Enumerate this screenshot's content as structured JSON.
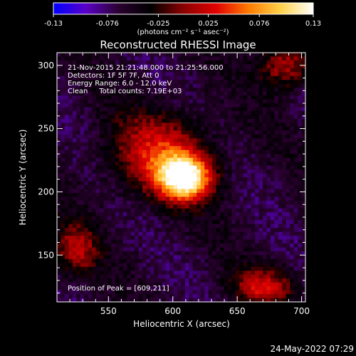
{
  "chart_data": {
    "type": "heatmap",
    "title": "Reconstructed RHESSI Image",
    "xlabel": "Heliocentric X (arcsec)",
    "ylabel": "Heliocentric Y (arcsec)",
    "xlim": [
      510,
      703
    ],
    "ylim": [
      113,
      310
    ],
    "x_ticks": [
      550,
      600,
      650,
      700
    ],
    "y_ticks": [
      150,
      200,
      250,
      300
    ],
    "colorbar": {
      "min": -0.13,
      "max": 0.13,
      "ticks": [
        "-0.13",
        "-0.076",
        "-0.025",
        "0.025",
        "0.076",
        "0.13"
      ],
      "units_label": "(photons cm⁻² s⁻¹ asec⁻²)",
      "colormap": [
        "#0000ff",
        "#5a00c8",
        "#2a0030",
        "#000000",
        "#8b0000",
        "#e00000",
        "#ff7a00",
        "#ffd24a",
        "#ffffff"
      ]
    },
    "annotations": [
      "21-Nov-2015 21:21:48.000 to 21:25:56.000",
      "Detectors: 1F 5F 7F, Att 0",
      "Energy Range: 6.0 - 12.0 keV",
      "Clean     Total counts: 7.19E+03"
    ],
    "peak_label": "Position of Peak = [609,211]",
    "peak": [
      609,
      211
    ],
    "sources": [
      {
        "x": 609,
        "y": 211,
        "sx": 14,
        "sy": 12,
        "amp": 0.13
      },
      {
        "x": 590,
        "y": 230,
        "sx": 26,
        "sy": 22,
        "amp": 0.06
      },
      {
        "x": 688,
        "y": 300,
        "sx": 14,
        "sy": 12,
        "amp": 0.05
      },
      {
        "x": 525,
        "y": 155,
        "sx": 12,
        "sy": 14,
        "amp": 0.04
      },
      {
        "x": 670,
        "y": 125,
        "sx": 16,
        "sy": 10,
        "amp": 0.05
      }
    ],
    "background": -0.06
  },
  "footer": {
    "date": "24-May-2022 07:29"
  }
}
